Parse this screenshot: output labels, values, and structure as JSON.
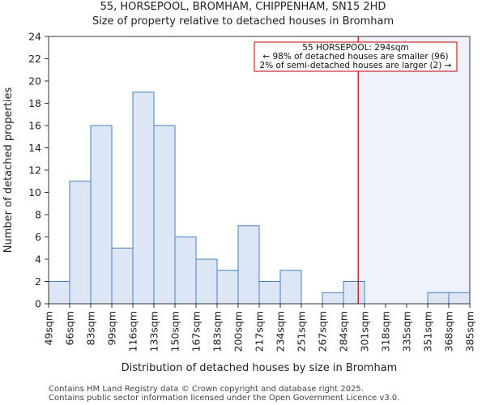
{
  "chart_data": {
    "type": "bar",
    "title_line1": "55, HORSEPOOL, BROMHAM, CHIPPENHAM, SN15 2HD",
    "title_line2": "Size of property relative to detached houses in Bromham",
    "xlabel": "Distribution of detached houses by size in Bromham",
    "ylabel": "Number of detached properties",
    "bin_labels": [
      "49sqm",
      "66sqm",
      "83sqm",
      "99sqm",
      "116sqm",
      "133sqm",
      "150sqm",
      "167sqm",
      "183sqm",
      "200sqm",
      "217sqm",
      "234sqm",
      "251sqm",
      "267sqm",
      "284sqm",
      "301sqm",
      "318sqm",
      "335sqm",
      "351sqm",
      "368sqm",
      "385sqm"
    ],
    "values": [
      2,
      11,
      16,
      5,
      19,
      16,
      6,
      4,
      3,
      7,
      2,
      3,
      0,
      1,
      2,
      0,
      0,
      0,
      1,
      1
    ],
    "yticks": [
      0,
      2,
      4,
      6,
      8,
      10,
      12,
      14,
      16,
      18,
      20,
      22,
      24
    ],
    "ylim": [
      0,
      24
    ],
    "grid": false,
    "bar_color": "#dce6f5",
    "bar_edge_color": "#4a7ec2",
    "highlight_region_color": "#eef2fb",
    "marker": {
      "x_value_sqm": 294,
      "bin_position": 14.7,
      "color": "#c00000"
    },
    "annotation": {
      "line1": "55 HORSEPOOL: 294sqm",
      "line2": "← 98% of detached houses are smaller (96)",
      "line3": "2% of semi-detached houses are larger (2) →",
      "placement": "top-right"
    }
  },
  "footer": {
    "line1": "Contains HM Land Registry data © Crown copyright and database right 2025.",
    "line2": "Contains public sector information licensed under the Open Government Licence v3.0."
  }
}
